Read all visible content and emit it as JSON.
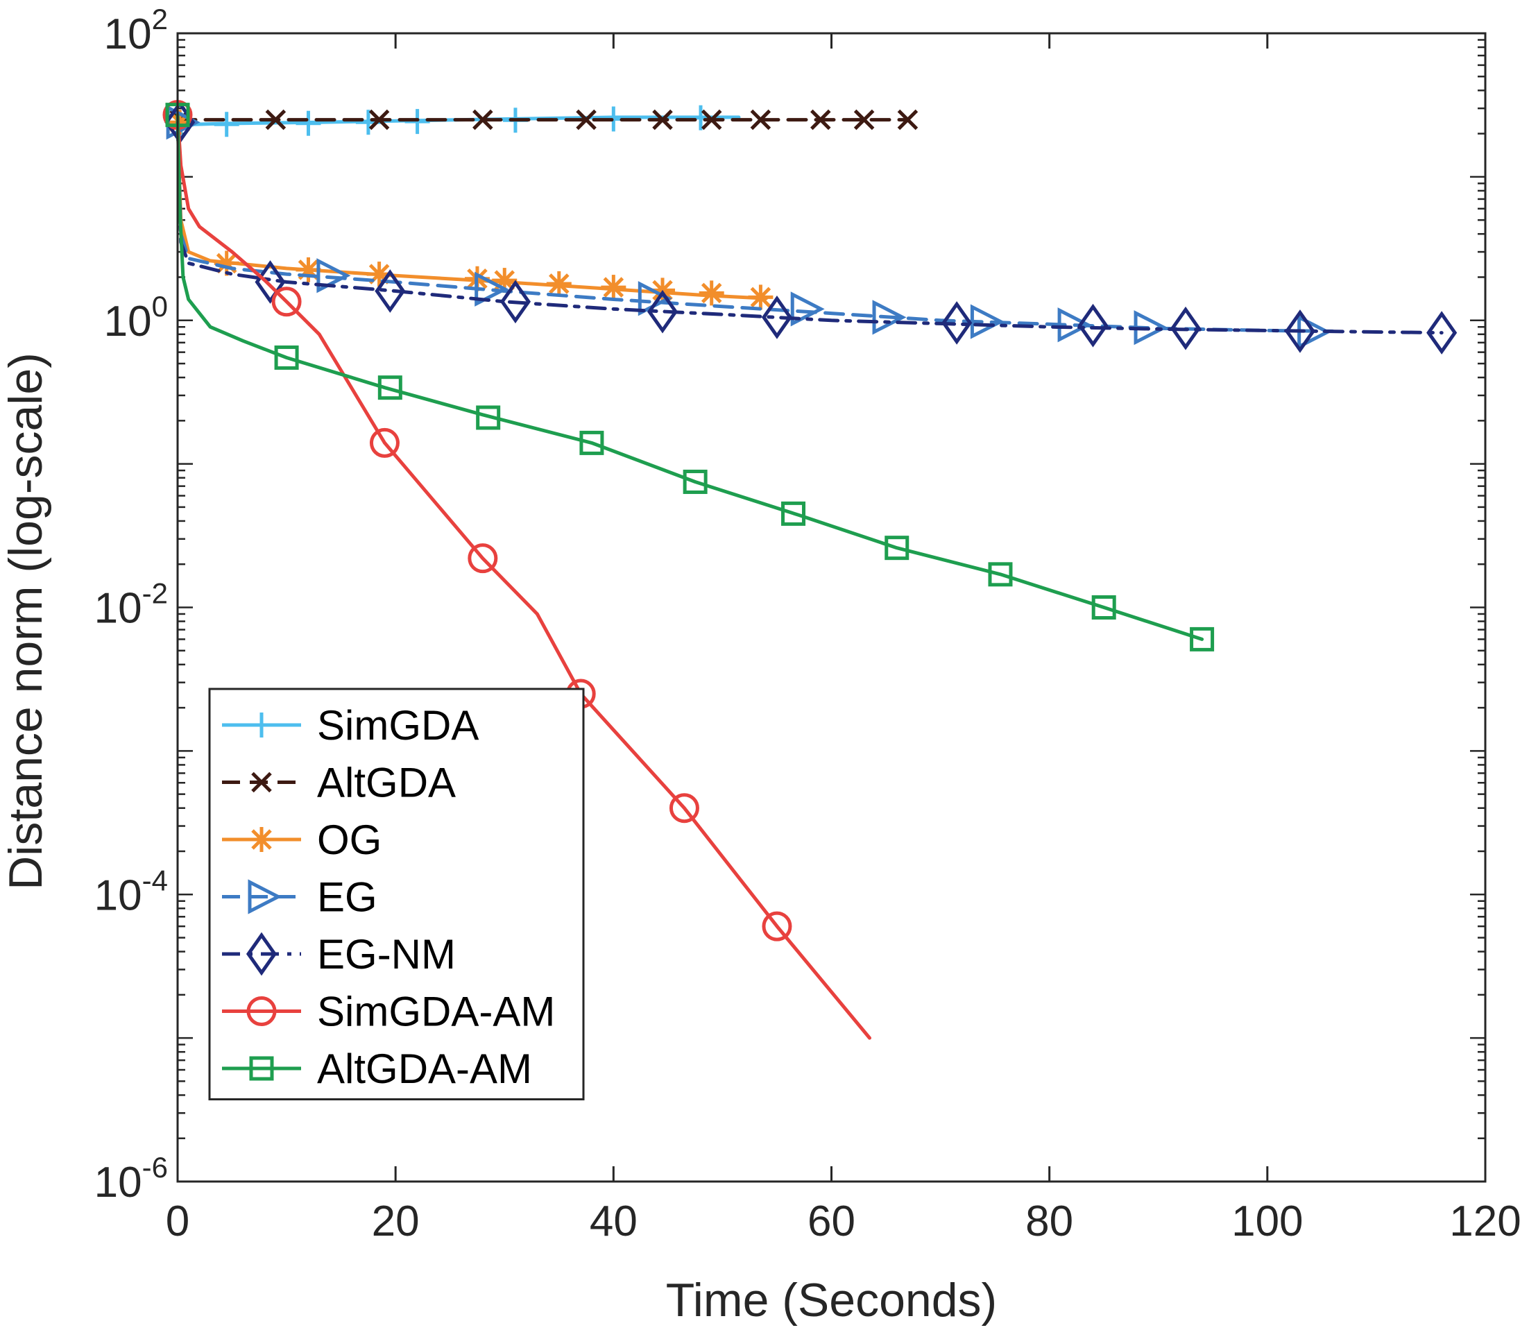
{
  "chart_data": {
    "type": "line",
    "xscale": "linear",
    "yscale": "log",
    "xlabel": "Time (Seconds)",
    "ylabel": "Distance norm (log-scale)",
    "xlim": [
      0,
      120
    ],
    "ylim": [
      1e-06,
      100
    ],
    "xticks": [
      0,
      20,
      40,
      60,
      80,
      100,
      120
    ],
    "yticks": [
      {
        "value": 1e-06,
        "base": "10",
        "exp": "-6"
      },
      {
        "value": 0.0001,
        "base": "10",
        "exp": "-4"
      },
      {
        "value": 0.01,
        "base": "10",
        "exp": "-2"
      },
      {
        "value": 1,
        "base": "10",
        "exp": "0"
      },
      {
        "value": 100,
        "base": "10",
        "exp": "2"
      }
    ],
    "legend_position": "bottom-left",
    "series": [
      {
        "name": "SimGDA",
        "color": "#4DBEEE",
        "dash": "solid",
        "marker": "plus",
        "points": [
          [
            0,
            23
          ],
          [
            4,
            23.5
          ],
          [
            13,
            24
          ],
          [
            26,
            25
          ],
          [
            40,
            26
          ],
          [
            51.5,
            26
          ]
        ],
        "markers": [
          [
            0.3,
            23
          ],
          [
            4.5,
            23.2
          ],
          [
            12,
            23.6
          ],
          [
            17.5,
            24
          ],
          [
            22,
            24.3
          ],
          [
            31,
            24.8
          ],
          [
            40,
            25.3
          ],
          [
            48,
            25.8
          ]
        ]
      },
      {
        "name": "AltGDA",
        "color": "#3D1A12",
        "dash": "dash",
        "marker": "x",
        "points": [
          [
            0,
            25
          ],
          [
            20,
            25
          ],
          [
            40,
            25
          ],
          [
            67,
            25
          ]
        ],
        "markers": [
          [
            0.2,
            25
          ],
          [
            9,
            25
          ],
          [
            18.5,
            25
          ],
          [
            28,
            25
          ],
          [
            37.5,
            25
          ],
          [
            44.5,
            25
          ],
          [
            49,
            25
          ],
          [
            53.5,
            25
          ],
          [
            59,
            25
          ],
          [
            63,
            25
          ],
          [
            67,
            25
          ]
        ]
      },
      {
        "name": "OG",
        "color": "#F28E2B",
        "dash": "solid",
        "marker": "asterisk",
        "points": [
          [
            0,
            24
          ],
          [
            0.3,
            5
          ],
          [
            1,
            3
          ],
          [
            3,
            2.6
          ],
          [
            10,
            2.3
          ],
          [
            20,
            2.05
          ],
          [
            30,
            1.85
          ],
          [
            40,
            1.65
          ],
          [
            48,
            1.5
          ],
          [
            54,
            1.42
          ]
        ],
        "markers": [
          [
            0.2,
            24
          ],
          [
            4.5,
            2.5
          ],
          [
            12,
            2.25
          ],
          [
            18.5,
            2.1
          ],
          [
            27.5,
            1.95
          ],
          [
            30,
            1.9
          ],
          [
            35,
            1.8
          ],
          [
            40,
            1.7
          ],
          [
            44.5,
            1.62
          ],
          [
            49,
            1.55
          ],
          [
            53.5,
            1.45
          ]
        ]
      },
      {
        "name": "EG",
        "color": "#3D7BC4",
        "dash": "dash",
        "marker": "triangle-right",
        "points": [
          [
            0,
            24
          ],
          [
            0.3,
            4
          ],
          [
            1,
            2.7
          ],
          [
            5,
            2.3
          ],
          [
            10,
            2.1
          ],
          [
            20,
            1.85
          ],
          [
            30,
            1.6
          ],
          [
            40,
            1.4
          ],
          [
            50,
            1.25
          ],
          [
            60,
            1.12
          ],
          [
            70,
            1.0
          ],
          [
            80,
            0.94
          ],
          [
            90,
            0.88
          ],
          [
            100,
            0.85
          ],
          [
            106,
            0.84
          ]
        ],
        "markers": [
          [
            0.2,
            24
          ],
          [
            14,
            2.05
          ],
          [
            28.5,
            1.65
          ],
          [
            43.5,
            1.42
          ],
          [
            57.5,
            1.2
          ],
          [
            65,
            1.05
          ],
          [
            74,
            0.98
          ],
          [
            82,
            0.93
          ],
          [
            89,
            0.89
          ],
          [
            104,
            0.83
          ]
        ]
      },
      {
        "name": "EG-NM",
        "color": "#1F2A7A",
        "dash": "dashdot",
        "marker": "diamond",
        "points": [
          [
            0,
            24
          ],
          [
            0.3,
            3.5
          ],
          [
            1,
            2.5
          ],
          [
            5,
            2.1
          ],
          [
            10,
            1.85
          ],
          [
            20,
            1.6
          ],
          [
            30,
            1.35
          ],
          [
            40,
            1.2
          ],
          [
            50,
            1.1
          ],
          [
            60,
            1.0
          ],
          [
            70,
            0.95
          ],
          [
            80,
            0.9
          ],
          [
            90,
            0.87
          ],
          [
            100,
            0.85
          ],
          [
            110,
            0.83
          ],
          [
            116,
            0.82
          ]
        ],
        "markers": [
          [
            0.2,
            24
          ],
          [
            8.5,
            1.85
          ],
          [
            19.5,
            1.6
          ],
          [
            31,
            1.35
          ],
          [
            44.5,
            1.15
          ],
          [
            55,
            1.05
          ],
          [
            71.5,
            0.96
          ],
          [
            84,
            0.92
          ],
          [
            92.5,
            0.88
          ],
          [
            103,
            0.84
          ],
          [
            116,
            0.82
          ]
        ]
      },
      {
        "name": "SimGDA-AM",
        "color": "#E8413E",
        "dash": "solid",
        "marker": "circle",
        "points": [
          [
            0,
            27
          ],
          [
            0.3,
            12
          ],
          [
            1,
            6
          ],
          [
            2,
            4.5
          ],
          [
            5,
            3
          ],
          [
            8,
            1.9
          ],
          [
            10,
            1.35
          ],
          [
            13,
            0.8
          ],
          [
            19,
            0.14
          ],
          [
            28,
            0.022
          ],
          [
            33,
            0.009
          ],
          [
            37,
            0.0025
          ],
          [
            46.5,
            0.0004
          ],
          [
            55,
            6e-05
          ],
          [
            63.5,
            1e-05
          ]
        ],
        "markers": [
          [
            0,
            27
          ],
          [
            10,
            1.35
          ],
          [
            19,
            0.14
          ],
          [
            28,
            0.022
          ],
          [
            37,
            0.0025
          ],
          [
            46.5,
            0.0004
          ],
          [
            55,
            6e-05
          ]
        ]
      },
      {
        "name": "AltGDA-AM",
        "color": "#1E9E4F",
        "dash": "solid",
        "marker": "square",
        "points": [
          [
            0,
            27
          ],
          [
            0.2,
            6
          ],
          [
            0.5,
            2
          ],
          [
            1,
            1.4
          ],
          [
            3,
            0.9
          ],
          [
            6,
            0.72
          ],
          [
            10,
            0.55
          ],
          [
            19,
            0.34
          ],
          [
            28,
            0.22
          ],
          [
            38,
            0.14
          ],
          [
            47.5,
            0.075
          ],
          [
            57,
            0.044
          ],
          [
            66,
            0.026
          ],
          [
            75.5,
            0.017
          ],
          [
            85,
            0.01
          ],
          [
            94,
            0.006
          ]
        ],
        "markers": [
          [
            0,
            27
          ],
          [
            10,
            0.55
          ],
          [
            19.5,
            0.34
          ],
          [
            28.5,
            0.21
          ],
          [
            38,
            0.14
          ],
          [
            47.5,
            0.075
          ],
          [
            56.5,
            0.045
          ],
          [
            66,
            0.026
          ],
          [
            75.5,
            0.017
          ],
          [
            85,
            0.01
          ],
          [
            94,
            0.006
          ]
        ]
      }
    ]
  }
}
